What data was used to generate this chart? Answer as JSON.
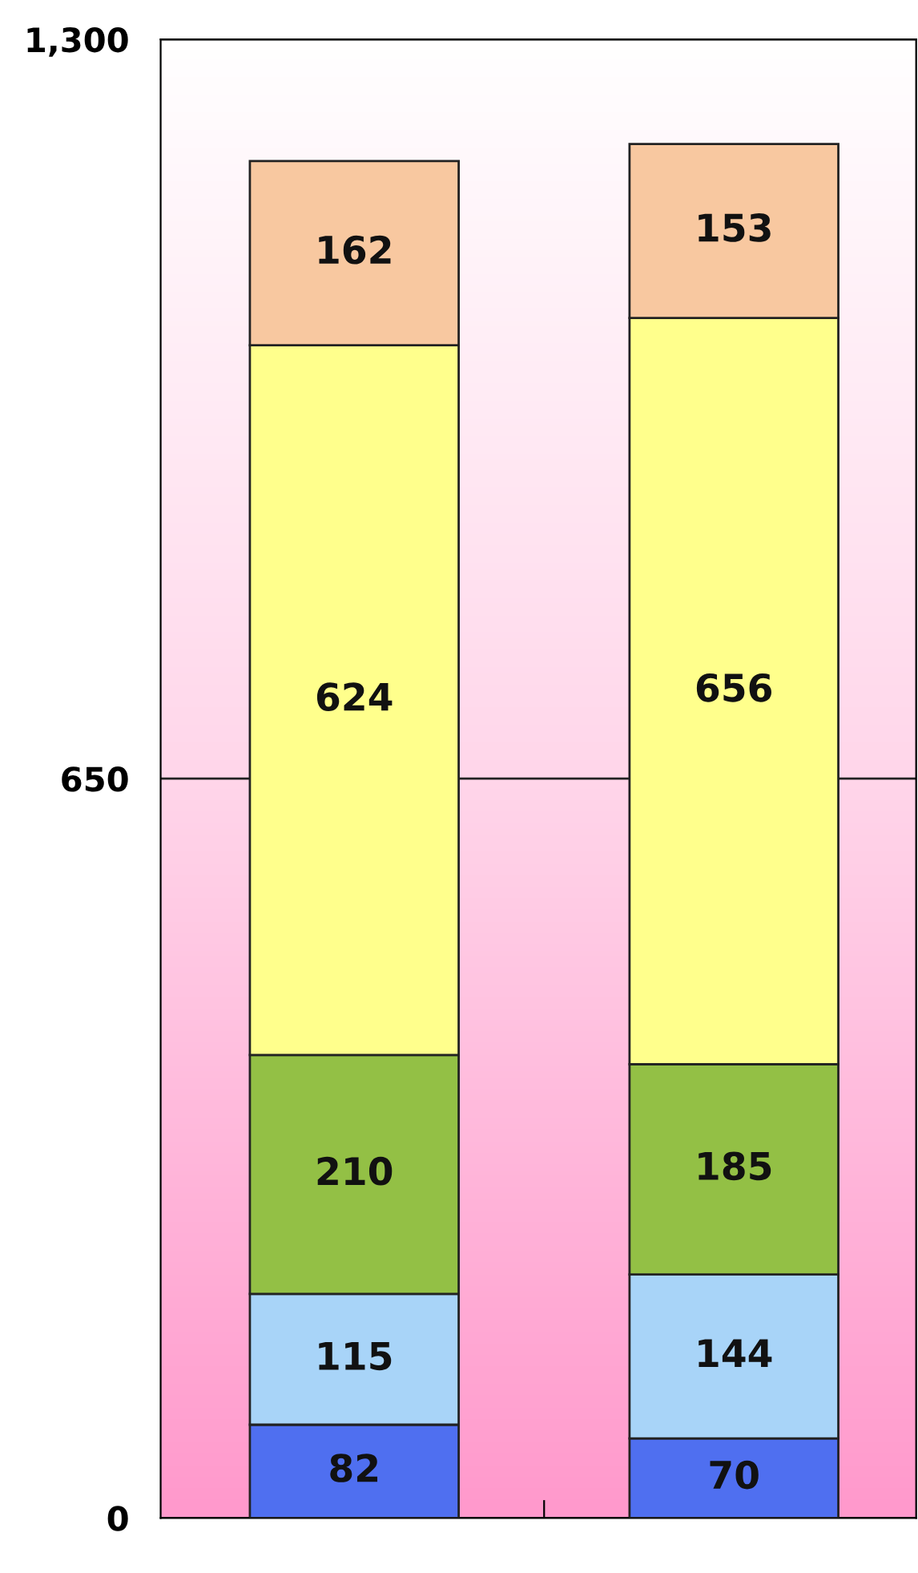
{
  "chart_data": {
    "type": "bar",
    "stacked": true,
    "categories": [
      null,
      null
    ],
    "series": [
      {
        "color": "#4f6ff0",
        "values": [
          82,
          70
        ]
      },
      {
        "color": "#a8d4f8",
        "values": [
          115,
          144
        ]
      },
      {
        "color": "#93c045",
        "values": [
          210,
          185
        ]
      },
      {
        "color": "#ffff8c",
        "values": [
          624,
          656
        ]
      },
      {
        "color": "#f8c8a0",
        "values": [
          162,
          153
        ]
      }
    ],
    "ylim": [
      0,
      1300
    ],
    "yticks": [
      0,
      650,
      {
        "value": 1300,
        "label": "1,300"
      }
    ],
    "grid": "y",
    "data_labels": true
  }
}
